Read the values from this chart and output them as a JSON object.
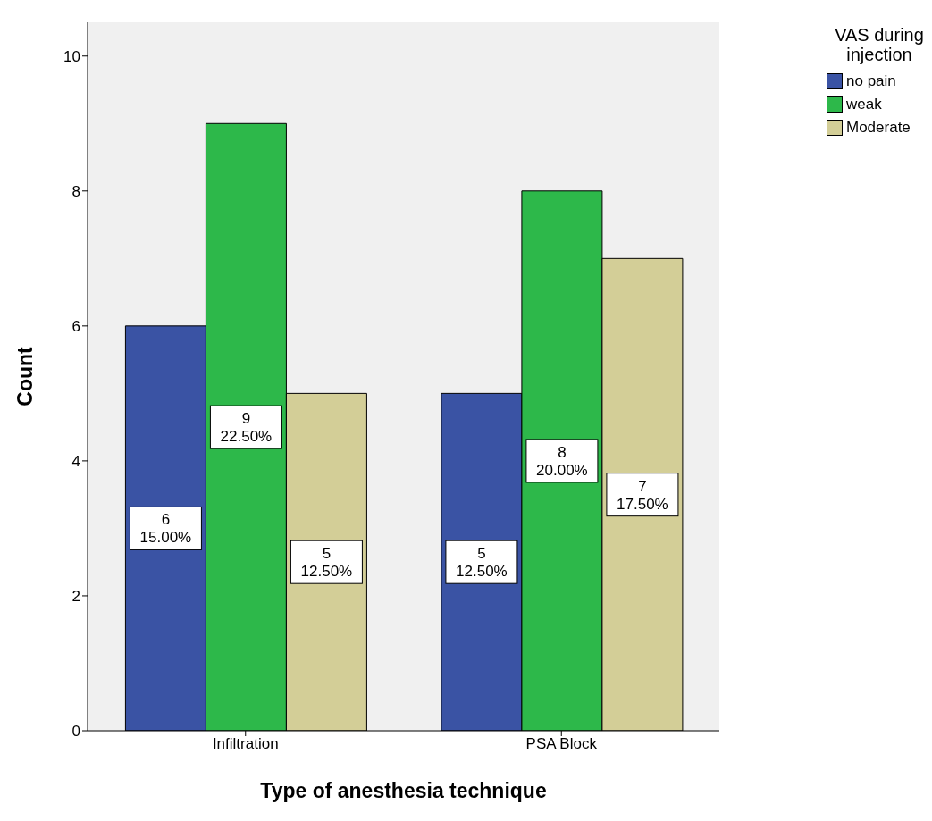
{
  "chart_data": {
    "type": "bar",
    "xlabel": "Type of anesthesia technique",
    "ylabel": "Count",
    "legend_title": "VAS during injection",
    "legend": "top right",
    "categories": [
      "Infiltration",
      "PSA Block"
    ],
    "series": [
      {
        "name": "no pain",
        "color": "#3a53a4",
        "values": [
          6,
          5
        ],
        "value_labels": [
          "6\n15.00%",
          "5\n12.50%"
        ]
      },
      {
        "name": "weak",
        "color": "#2db84a",
        "values": [
          9,
          8
        ],
        "value_labels": [
          "9\n22.50%",
          "8\n20.00%"
        ]
      },
      {
        "name": "Moderate",
        "color": "#d3ce97",
        "values": [
          5,
          7
        ],
        "value_labels": [
          "5\n12.50%",
          "7\n17.50%"
        ]
      }
    ],
    "ylim": [
      0,
      10.5
    ],
    "yticks": [
      0,
      2,
      4,
      6,
      8,
      10
    ],
    "grid": false
  }
}
